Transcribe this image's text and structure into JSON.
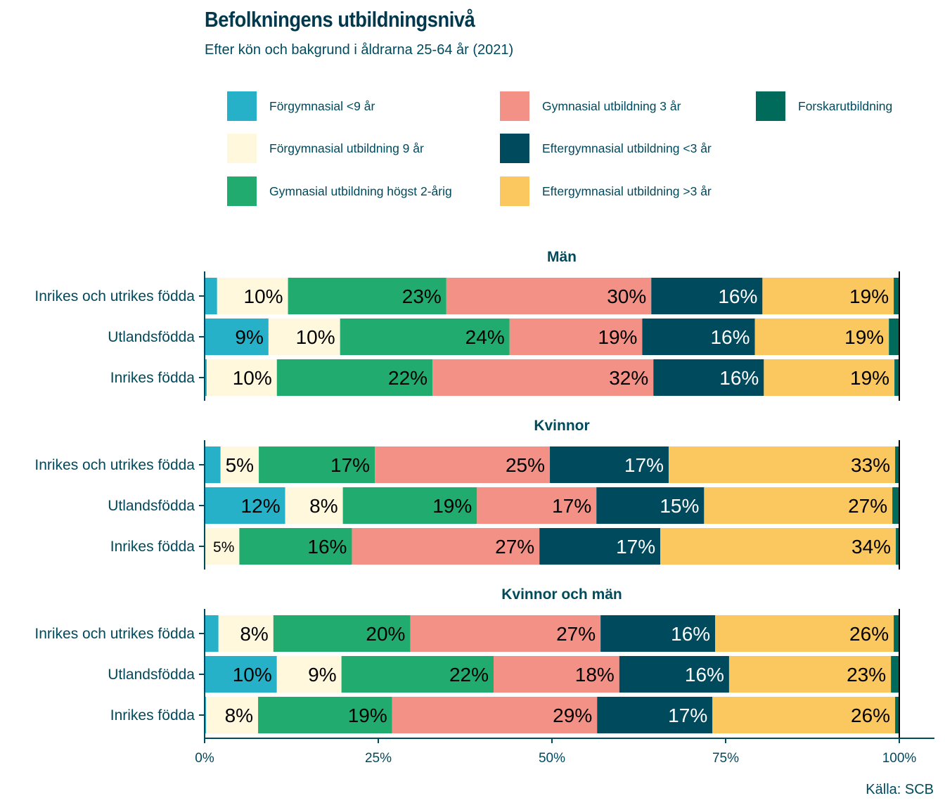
{
  "title": "Befolkningens utbildningsnivå",
  "subtitle": "Efter kön och bakgrund i åldrarna 25-64 år (2021)",
  "source": "Källa: SCB",
  "chart_data": {
    "type": "bar",
    "orientation": "horizontal",
    "stacked": true,
    "title": "Befolkningens utbildningsnivå",
    "subtitle": "Efter kön och bakgrund i åldrarna 25-64 år (2021)",
    "xlabel": "",
    "ylabel": "",
    "xlim": [
      0,
      100
    ],
    "x_ticks": [
      "0%",
      "25%",
      "50%",
      "75%",
      "100%"
    ],
    "x_tick_values": [
      0,
      25,
      50,
      75,
      100
    ],
    "grid": false,
    "legend_position": "top",
    "categories": [
      "Inrikes och utrikes födda",
      "Utlandsfödda",
      "Inrikes födda"
    ],
    "series_names": [
      "Förgymnasial <9 år",
      "Förgymnasial utbildning 9 år",
      "Gymnasial utbildning högst 2-årig",
      "Gymnasial utbildning 3 år",
      "Eftergymnasial utbildning <3 år",
      "Eftergymnasial utbildning >3 år",
      "Forskarutbildning"
    ],
    "series_colors": [
      "#26b1c8",
      "#fff8dd",
      "#22ab6e",
      "#f39186",
      "#004a5e",
      "#fbc75f",
      "#006b5a"
    ],
    "label_colors": [
      "#000000",
      "#000000",
      "#000000",
      "#000000",
      "#ffffff",
      "#000000",
      "#ffffff"
    ],
    "panels": [
      {
        "name": "Män",
        "rows": [
          {
            "category": "Inrikes och utrikes födda",
            "values": [
              1.8,
              10.2,
              22.8,
              29.5,
              16.0,
              18.9,
              0.8
            ],
            "labels": [
              "",
              "10%",
              "23%",
              "30%",
              "16%",
              "19%",
              ""
            ]
          },
          {
            "category": "Utlandsfödda",
            "values": [
              9.2,
              10.3,
              24.4,
              19.1,
              16.2,
              19.3,
              1.4
            ],
            "labels": [
              "9%",
              "10%",
              "24%",
              "19%",
              "16%",
              "19%",
              ""
            ]
          },
          {
            "category": "Inrikes födda",
            "values": [
              0.3,
              10.1,
              22.4,
              31.8,
              15.9,
              18.8,
              0.7
            ],
            "labels": [
              "",
              "10%",
              "22%",
              "32%",
              "16%",
              "19%",
              ""
            ]
          }
        ]
      },
      {
        "name": "Kvinnor",
        "rows": [
          {
            "category": "Inrikes och utrikes födda",
            "values": [
              2.3,
              5.5,
              16.7,
              25.2,
              17.1,
              32.6,
              0.5
            ],
            "labels": [
              "",
              "5%",
              "17%",
              "25%",
              "17%",
              "33%",
              ""
            ]
          },
          {
            "category": "Utlandsfödda",
            "values": [
              11.6,
              8.3,
              19.3,
              17.2,
              15.5,
              27.1,
              0.9
            ],
            "labels": [
              "12%",
              "8%",
              "19%",
              "17%",
              "15%",
              "27%",
              ""
            ]
          },
          {
            "category": "Inrikes födda",
            "values": [
              0.1,
              4.9,
              16.2,
              27.0,
              17.4,
              33.9,
              0.5
            ],
            "labels": [
              "",
              "5%",
              "16%",
              "27%",
              "17%",
              "34%",
              ""
            ]
          }
        ]
      },
      {
        "name": "Kvinnor och män",
        "rows": [
          {
            "category": "Inrikes och utrikes födda",
            "values": [
              2.0,
              7.9,
              19.7,
              27.4,
              16.5,
              25.7,
              0.8
            ],
            "labels": [
              "",
              "8%",
              "20%",
              "27%",
              "16%",
              "26%",
              ""
            ]
          },
          {
            "category": "Utlandsfödda",
            "values": [
              10.4,
              9.3,
              21.9,
              18.1,
              15.8,
              23.3,
              1.2
            ],
            "labels": [
              "10%",
              "9%",
              "22%",
              "18%",
              "16%",
              "23%",
              ""
            ]
          },
          {
            "category": "Inrikes födda",
            "values": [
              0.2,
              7.5,
              19.3,
              29.5,
              16.6,
              26.3,
              0.6
            ],
            "labels": [
              "",
              "8%",
              "19%",
              "29%",
              "17%",
              "26%",
              ""
            ]
          }
        ]
      }
    ]
  }
}
